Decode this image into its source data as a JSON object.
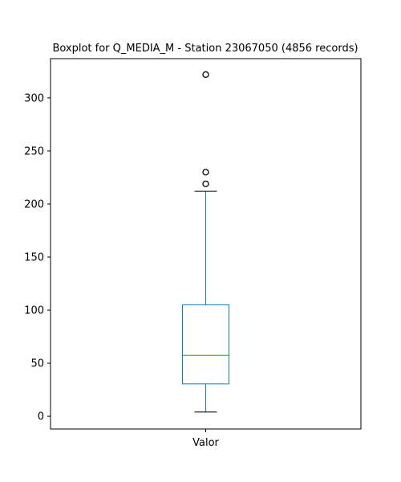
{
  "chart_data": {
    "type": "box",
    "title": "Boxplot for Q_MEDIA_M - Station 23067050 (4856 records)",
    "xlabel": "",
    "ylabel": "",
    "categories": [
      "Valor"
    ],
    "ylim": [
      -12,
      337
    ],
    "y_ticks": [
      0,
      50,
      100,
      150,
      200,
      250,
      300
    ],
    "grid": false,
    "legend": "none",
    "boxes": [
      {
        "name": "Valor",
        "whisker_low": 4,
        "q1": 30.5,
        "median": 57.5,
        "q3": 105,
        "whisker_high": 212,
        "outliers": [
          219,
          230,
          322
        ]
      }
    ],
    "colors": {
      "box": "#1f77b4",
      "whisker": "#1f77b4",
      "cap": "#000000",
      "median": "#2ca02c",
      "outlier": "#000000"
    }
  }
}
